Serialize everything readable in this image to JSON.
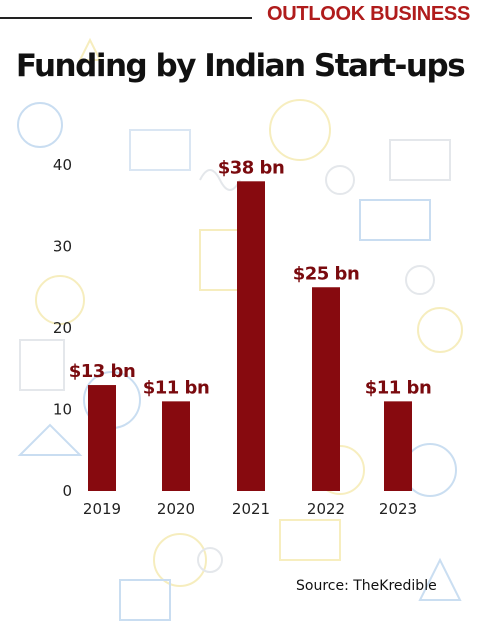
{
  "brand": {
    "name": "OUTLOOK BUSINESS"
  },
  "source": "Source: TheKredible",
  "colors": {
    "bar": "#870a0f",
    "label": "#7a0a0e",
    "brand": "#b01c1c"
  },
  "chart_data": {
    "type": "bar",
    "title": "Funding by Indian Start-ups",
    "categories": [
      "2019",
      "2020",
      "2021",
      "2022",
      "2023"
    ],
    "values": [
      13,
      11,
      38,
      25,
      11
    ],
    "data_labels": [
      "$13 bn",
      "$11 bn",
      "$38 bn",
      "$25 bn",
      "$11 bn"
    ],
    "ylim": [
      0,
      40
    ],
    "yticks": [
      0,
      10,
      20,
      30,
      40
    ],
    "xlabel": "",
    "ylabel": "",
    "grid": false,
    "legend": "none"
  }
}
